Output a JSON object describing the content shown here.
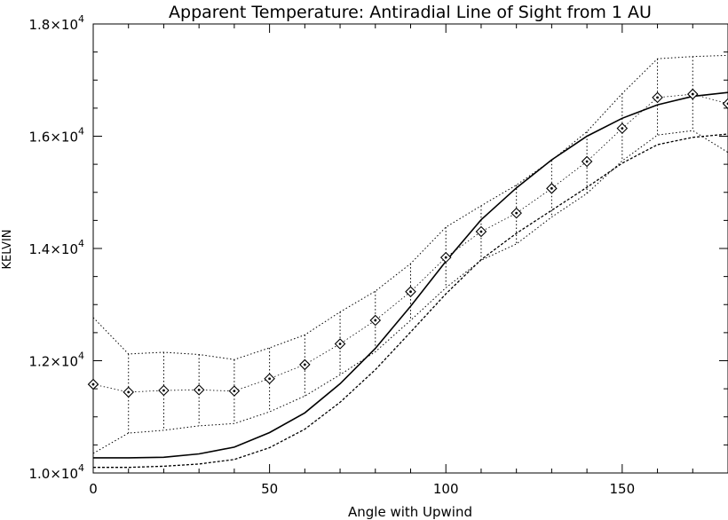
{
  "chart_data": {
    "type": "line",
    "title": "Apparent Temperature: Antiradial Line of Sight from 1 AU",
    "xlabel": "Angle with Upwind",
    "ylabel": "KELVIN",
    "xlim": [
      0,
      180
    ],
    "ylim": [
      10000,
      18000
    ],
    "x_ticks": [
      {
        "value": 0,
        "label": "0"
      },
      {
        "value": 50,
        "label": "50"
      },
      {
        "value": 100,
        "label": "100"
      },
      {
        "value": 150,
        "label": "150"
      }
    ],
    "y_ticks": [
      {
        "value": 10000,
        "mantissa": "1.0",
        "base": "×10",
        "exp": "4"
      },
      {
        "value": 12000,
        "mantissa": "1.2",
        "base": "×10",
        "exp": "4"
      },
      {
        "value": 14000,
        "mantissa": "1.4",
        "base": "×10",
        "exp": "4"
      },
      {
        "value": 16000,
        "mantissa": "1.6",
        "base": "×10",
        "exp": "4"
      },
      {
        "value": 18000,
        "mantissa": "1.8",
        "base": "×10",
        "exp": "4"
      }
    ],
    "grid": false,
    "x": [
      0,
      10,
      20,
      30,
      40,
      50,
      60,
      70,
      80,
      90,
      100,
      110,
      120,
      130,
      140,
      150,
      160,
      170,
      180
    ],
    "series": [
      {
        "style": "diamond-markers",
        "values": [
          11580,
          11440,
          11470,
          11480,
          11460,
          11680,
          11930,
          12300,
          12720,
          13230,
          13840,
          14300,
          14630,
          15070,
          15550,
          16140,
          16690,
          16750,
          16580
        ]
      },
      {
        "style": "dotted-upper-envelope",
        "values": [
          12770,
          12120,
          12150,
          12110,
          12020,
          12230,
          12460,
          12870,
          13240,
          13730,
          14380,
          14760,
          15130,
          15570,
          16080,
          16760,
          17380,
          17420,
          17440
        ]
      },
      {
        "style": "dotted-lower-envelope",
        "values": [
          10350,
          10710,
          10760,
          10840,
          10880,
          11090,
          11370,
          11750,
          12160,
          12720,
          13300,
          13790,
          14080,
          14560,
          14980,
          15560,
          16020,
          16100,
          15710
        ]
      },
      {
        "style": "solid",
        "values": [
          10270,
          10270,
          10280,
          10340,
          10460,
          10720,
          11070,
          11590,
          12220,
          12970,
          13770,
          14510,
          15080,
          15580,
          16000,
          16320,
          16560,
          16710,
          16780
        ]
      },
      {
        "style": "dashed",
        "values": [
          10100,
          10100,
          10120,
          10160,
          10240,
          10450,
          10780,
          11260,
          11840,
          12510,
          13190,
          13800,
          14270,
          14680,
          15090,
          15520,
          15850,
          15980,
          16040
        ]
      }
    ]
  }
}
